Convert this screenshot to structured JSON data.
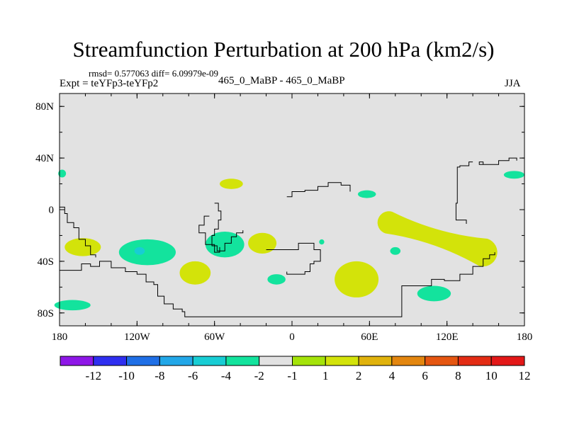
{
  "chart_data": {
    "type": "heatmap",
    "title": "Streamfunction Perturbation at 200 hPa (km2/s)",
    "stats_text": "rmsd= 0.577063 diff= 6.09979e-09",
    "experiment_text": "Expt = teYFp3-teYFp2",
    "subtitle": "465_0_MaBP - 465_0_MaBP",
    "season": "JJA",
    "xlim": [
      -180,
      180
    ],
    "ylim": [
      -90,
      90
    ],
    "x_ticks": [
      {
        "value": -180,
        "label": "180"
      },
      {
        "value": -120,
        "label": "120W"
      },
      {
        "value": -60,
        "label": "60W"
      },
      {
        "value": 0,
        "label": "0"
      },
      {
        "value": 60,
        "label": "60E"
      },
      {
        "value": 120,
        "label": "120E"
      },
      {
        "value": 180,
        "label": "180"
      }
    ],
    "y_ticks": [
      {
        "value": 80,
        "label": "80N"
      },
      {
        "value": 40,
        "label": "40N"
      },
      {
        "value": 0,
        "label": "0"
      },
      {
        "value": -40,
        "label": "40S"
      },
      {
        "value": -80,
        "label": "80S"
      }
    ],
    "background_color": "#e2e2e2",
    "colorbar": {
      "colors": [
        "#8e17e7",
        "#2f2ff0",
        "#1f6fe6",
        "#22a7e8",
        "#18cdd4",
        "#13e39d",
        "#e2e2e2",
        "#a4e309",
        "#d3e30a",
        "#e0b20c",
        "#e3860f",
        "#e55611",
        "#e32c14",
        "#e31818"
      ],
      "labels": [
        "-12",
        "-10",
        "-8",
        "-6",
        "-4",
        "-2",
        "-1",
        "1",
        "2",
        "4",
        "6",
        "8",
        "10",
        "12"
      ]
    },
    "anomalies": [
      {
        "lon": -162,
        "lat": -29,
        "rlon": 14,
        "rlat": 7,
        "class": "2"
      },
      {
        "lon": -178,
        "lat": 28,
        "rlon": 3,
        "rlat": 3,
        "class": "-2"
      },
      {
        "lon": -170,
        "lat": -74,
        "rlon": 14,
        "rlat": 4,
        "class": "-2"
      },
      {
        "lon": -112,
        "lat": -33,
        "rlon": 22,
        "rlat": 10,
        "class": "-2"
      },
      {
        "lon": -118,
        "lat": -32,
        "rlon": 4,
        "rlat": 3,
        "class": "-4"
      },
      {
        "lon": -75,
        "lat": -49,
        "rlon": 12,
        "rlat": 9,
        "class": "2"
      },
      {
        "lon": -52,
        "lat": -27,
        "rlon": 15,
        "rlat": 10,
        "class": "-2"
      },
      {
        "lon": -47,
        "lat": 20,
        "rlon": 9,
        "rlat": 4,
        "class": "2"
      },
      {
        "lon": -23,
        "lat": -26,
        "rlon": 11,
        "rlat": 8,
        "class": "2"
      },
      {
        "lon": -12,
        "lat": -54,
        "rlon": 7,
        "rlat": 4,
        "class": "-2"
      },
      {
        "lon": 23,
        "lat": -25,
        "rlon": 2,
        "rlat": 2,
        "class": "-2"
      },
      {
        "lon": 58,
        "lat": 12,
        "rlon": 7,
        "rlat": 3,
        "class": "-2"
      },
      {
        "lon": 50,
        "lat": -54,
        "rlon": 17,
        "rlat": 14,
        "class": "2"
      },
      {
        "lon": 80,
        "lat": -32,
        "rlon": 4,
        "rlat": 3,
        "class": "-2"
      },
      {
        "lon": 110,
        "lat": -65,
        "rlon": 13,
        "rlat": 6,
        "class": "-2"
      },
      {
        "lon": 172,
        "lat": 27,
        "rlon": 8,
        "rlat": 3,
        "class": "-2"
      }
    ],
    "band": {
      "from_lon": 75,
      "from_lat": -10,
      "to_lon": 148,
      "to_lat": -33,
      "class": "2"
    },
    "coastline": [
      [
        [
          -180,
          -47
        ],
        [
          -170,
          -47
        ],
        [
          -163,
          -42
        ],
        [
          -156,
          -44
        ],
        [
          -149,
          -40
        ],
        [
          -140,
          -45
        ],
        [
          -129,
          -48
        ],
        [
          -120,
          -50
        ],
        [
          -113,
          -56
        ],
        [
          -107,
          -58
        ],
        [
          -104,
          -67
        ],
        [
          -99,
          -73
        ],
        [
          -92,
          -77
        ],
        [
          -85,
          -79
        ],
        [
          -83,
          -83
        ],
        [
          -60,
          -83
        ],
        [
          -20,
          -83
        ],
        [
          0,
          -83
        ],
        [
          40,
          -83
        ],
        [
          85,
          -83
        ],
        [
          85,
          -59
        ],
        [
          100,
          -59
        ],
        [
          108,
          -54
        ],
        [
          118,
          -55
        ],
        [
          130,
          -50
        ],
        [
          140,
          -44
        ],
        [
          148,
          -38
        ],
        [
          153,
          -35
        ],
        [
          157,
          -33
        ]
      ],
      [
        [
          -180,
          2
        ],
        [
          -176,
          -3
        ],
        [
          -174,
          -10
        ],
        [
          -169,
          -14
        ],
        [
          -165,
          -23
        ],
        [
          -160,
          -28
        ],
        [
          -156,
          -35
        ],
        [
          -152,
          -37
        ]
      ],
      [
        [
          -60,
          5
        ],
        [
          -57,
          -1
        ],
        [
          -55,
          -8
        ],
        [
          -57,
          -15
        ],
        [
          -60,
          -20
        ],
        [
          -62,
          -28
        ],
        [
          -58,
          -32
        ],
        [
          -52,
          -26
        ],
        [
          -47,
          -21
        ],
        [
          -43,
          -18
        ],
        [
          -38,
          -16
        ]
      ],
      [
        [
          -64,
          -5
        ],
        [
          -68,
          -12
        ],
        [
          -72,
          -18
        ],
        [
          -67,
          -27
        ],
        [
          -60,
          -33
        ],
        [
          -56,
          -29
        ]
      ],
      [
        [
          -20,
          -31
        ],
        [
          -8,
          -31
        ],
        [
          5,
          -26
        ],
        [
          17,
          -31
        ],
        [
          22,
          -40
        ],
        [
          17,
          -42
        ],
        [
          14,
          -48
        ],
        [
          10,
          -50
        ],
        [
          1,
          -50
        ],
        [
          -4,
          -48
        ]
      ],
      [
        [
          -4,
          10
        ],
        [
          0,
          14
        ],
        [
          10,
          15
        ],
        [
          20,
          18
        ],
        [
          28,
          21
        ],
        [
          38,
          19
        ],
        [
          45,
          14
        ]
      ],
      [
        [
          140,
          37
        ],
        [
          137,
          34
        ],
        [
          130,
          33
        ],
        [
          128,
          24
        ],
        [
          128,
          5
        ],
        [
          127,
          -8
        ],
        [
          135,
          -11
        ]
      ],
      [
        [
          154,
          35
        ],
        [
          148,
          37
        ],
        [
          145,
          35
        ],
        [
          160,
          38
        ],
        [
          168,
          40
        ],
        [
          174,
          38
        ]
      ]
    ]
  }
}
